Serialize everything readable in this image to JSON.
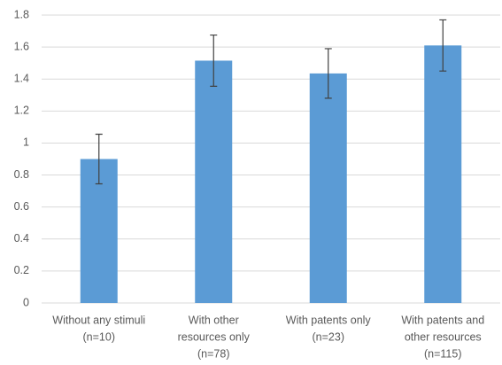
{
  "chart_data": {
    "type": "bar",
    "categories": [
      [
        "Without any stimuli",
        "(n=10)"
      ],
      [
        "With other",
        "resources only",
        "(n=78)"
      ],
      [
        "With patents only",
        "(n=23)"
      ],
      [
        "With patents and",
        "other resources",
        "(n=115)"
      ]
    ],
    "values": [
      0.9,
      1.515,
      1.435,
      1.61
    ],
    "errors": [
      0.155,
      0.16,
      0.155,
      0.16
    ],
    "color": "#5b9bd5",
    "ylim": [
      0,
      1.8
    ],
    "yticks": [
      0,
      0.2,
      0.4,
      0.6,
      0.8,
      1,
      1.2,
      1.4,
      1.6,
      1.8
    ],
    "grid": true
  }
}
